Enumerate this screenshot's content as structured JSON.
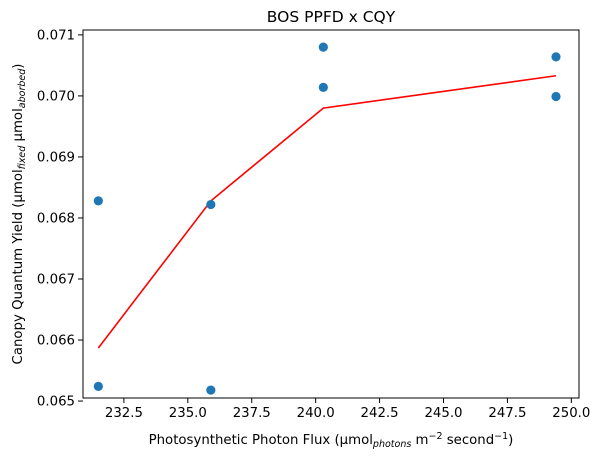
{
  "chart_data": {
    "type": "scatter",
    "title": "BOS PPFD x CQY",
    "xlabel": {
      "pre": "Photosynthetic Photon Flux (μmol",
      "sub": "photons",
      "mid": " m",
      "sup1": "−2",
      "mid2": " second",
      "sup2": "−1",
      "post": ")"
    },
    "ylabel": {
      "pre": "Canopy Quantum Yield (μmol",
      "sub1": "fixed",
      "mid": " μmol",
      "sub2": "aborbed",
      "post": ")"
    },
    "xlim": [
      230.9,
      250.3
    ],
    "ylim": [
      0.06505,
      0.07108
    ],
    "xticks": [
      232.5,
      235.0,
      237.5,
      240.0,
      242.5,
      245.0,
      247.5,
      250.0
    ],
    "xtick_labels": [
      "232.5",
      "235.0",
      "237.5",
      "240.0",
      "242.5",
      "245.0",
      "247.5",
      "250.0"
    ],
    "yticks": [
      0.065,
      0.066,
      0.067,
      0.068,
      0.069,
      0.07,
      0.071
    ],
    "ytick_labels": [
      "0.065",
      "0.066",
      "0.067",
      "0.068",
      "0.069",
      "0.070",
      "0.071"
    ],
    "grid": false,
    "series": [
      {
        "type": "scatter",
        "color": "#1f77b4",
        "points": [
          {
            "x": 231.5,
            "y": 0.06828
          },
          {
            "x": 231.5,
            "y": 0.06524
          },
          {
            "x": 235.9,
            "y": 0.06822
          },
          {
            "x": 235.9,
            "y": 0.06518
          },
          {
            "x": 240.3,
            "y": 0.0708
          },
          {
            "x": 240.3,
            "y": 0.07014
          },
          {
            "x": 249.4,
            "y": 0.07064
          },
          {
            "x": 249.4,
            "y": 0.06999
          }
        ]
      },
      {
        "type": "line",
        "color": "#ff0000",
        "points": [
          {
            "x": 231.5,
            "y": 0.06587
          },
          {
            "x": 235.9,
            "y": 0.06828
          },
          {
            "x": 240.3,
            "y": 0.0698
          },
          {
            "x": 249.4,
            "y": 0.07033
          }
        ]
      }
    ]
  }
}
